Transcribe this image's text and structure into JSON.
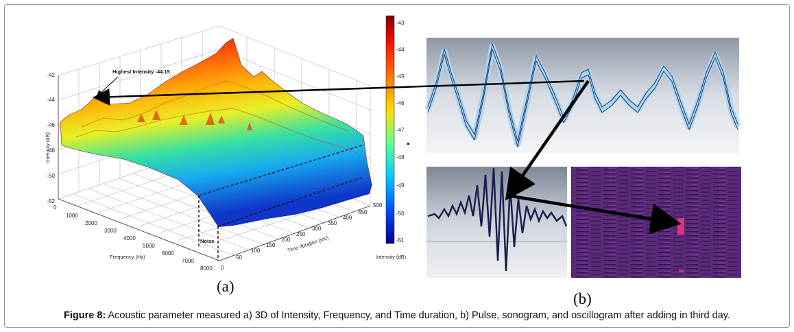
{
  "figure": {
    "caption_label": "Figure 8:",
    "caption_text": " Acoustic parameter measured a) 3D of Intensity, Frequency, and Time duration, b) Pulse, sonogram, and oscillogram after adding in third day."
  },
  "panel_a": {
    "sublabel": "(a)",
    "annotation_highest": "Highest Intensity -44.15",
    "annotation_noise": "Noise",
    "colorbar_title": "Intensity (dB)",
    "colorbar_ticks": [
      "-43",
      "-44",
      "-45",
      "-46",
      "-47",
      "-48",
      "-49",
      "-50",
      "-51"
    ]
  },
  "panel_b": {
    "sublabel": "(b)"
  },
  "chart_data": {
    "type": "surface3d",
    "zlabel": "Intensity (dB)",
    "xlabel": "Frequency (Hz)",
    "ylabel": "Time duration (ms)",
    "z_ticks": [
      "-42",
      "-44",
      "-46",
      "-48",
      "-50",
      "-52"
    ],
    "x_ticks": [
      "0",
      "1000",
      "2000",
      "3000",
      "4000",
      "5000",
      "6000",
      "7000",
      "8000"
    ],
    "y_ticks": [
      "0",
      "50",
      "100",
      "150",
      "200",
      "250",
      "300",
      "350",
      "400",
      "450",
      "500"
    ],
    "zlim": [
      -52,
      -42
    ],
    "xlim": [
      0,
      8000
    ],
    "ylim": [
      0,
      500
    ],
    "colorbar_range": [
      -51,
      -43
    ],
    "highest_intensity": -44.15,
    "colors": {
      "high": "#a01010",
      "mid": "#f0e020",
      "low": "#1030c0"
    }
  }
}
